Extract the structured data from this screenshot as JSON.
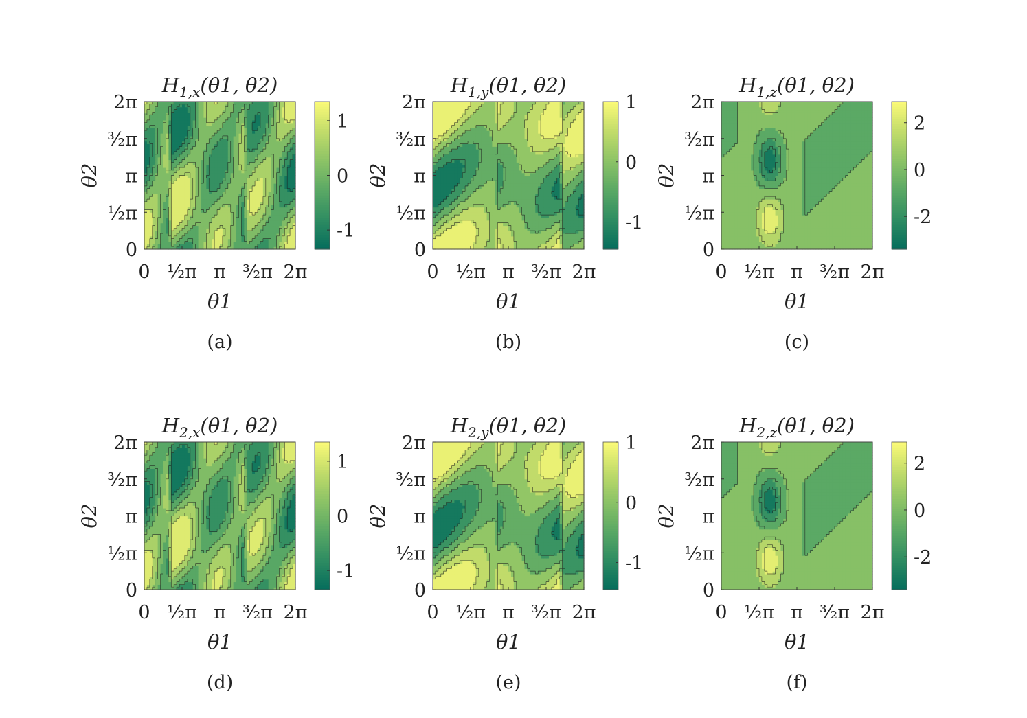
{
  "figure": {
    "rows": 2,
    "columns": 3,
    "colormap": [
      "#046c5c",
      "#2e8c62",
      "#5aa865",
      "#8cc366",
      "#c2dc6a",
      "#fbfa78"
    ],
    "contour_line_color": "#1e1e1e"
  },
  "chart_data": [
    {
      "type": "heatmap",
      "caption": "(a)",
      "title": "H1,x(θ1, θ2)",
      "title_main": "H",
      "title_sub": "1,x",
      "title_args": "(θ1, θ2)",
      "xlabel": "θ1",
      "ylabel": "θ2",
      "xlim": [
        0,
        6.2832
      ],
      "ylim": [
        0,
        6.2832
      ],
      "xticks": [
        0,
        1.5708,
        3.1416,
        4.7124,
        6.2832
      ],
      "xtick_labels": [
        "0",
        "½π",
        "π",
        "³⁄₂π",
        "2π"
      ],
      "yticks": [
        0,
        1.5708,
        3.1416,
        4.7124,
        6.2832
      ],
      "ytick_labels": [
        "0",
        "½π",
        "π",
        "³⁄₂π",
        "2π"
      ],
      "function": "hx",
      "colorbar": {
        "min": -1.35,
        "max": 1.35,
        "ticks": [
          1,
          0,
          -1
        ],
        "tick_labels": [
          "1",
          "0",
          "-1"
        ]
      },
      "contour_levels": [
        -0.96,
        -0.5,
        -0.08,
        0.35,
        0.8
      ]
    },
    {
      "type": "heatmap",
      "caption": "(b)",
      "title": "H1,y(θ1, θ2)",
      "title_main": "H",
      "title_sub": "1,y",
      "title_args": "(θ1, θ2)",
      "xlabel": "θ1",
      "ylabel": "θ2",
      "xlim": [
        0,
        6.2832
      ],
      "ylim": [
        0,
        6.2832
      ],
      "xticks": [
        0,
        1.5708,
        3.1416,
        4.7124,
        6.2832
      ],
      "xtick_labels": [
        "0",
        "½π",
        "π",
        "³⁄₂π",
        "2π"
      ],
      "yticks": [
        0,
        1.5708,
        3.1416,
        4.7124,
        6.2832
      ],
      "ytick_labels": [
        "0",
        "½π",
        "π",
        "³⁄₂π",
        "2π"
      ],
      "function": "hy",
      "colorbar": {
        "min": -1.45,
        "max": 1.0,
        "ticks": [
          1,
          0,
          -1
        ],
        "tick_labels": [
          "1",
          "0",
          "-1"
        ]
      },
      "contour_levels": [
        -1.05,
        -0.6,
        -0.15,
        0.3,
        0.7
      ]
    },
    {
      "type": "heatmap",
      "caption": "(c)",
      "title": "H1,z(θ1, θ2)",
      "title_main": "H",
      "title_sub": "1,z",
      "title_args": "(θ1, θ2)",
      "xlabel": "θ1",
      "ylabel": "θ2",
      "xlim": [
        0,
        6.2832
      ],
      "ylim": [
        0,
        6.2832
      ],
      "xticks": [
        0,
        1.5708,
        3.1416,
        4.7124,
        6.2832
      ],
      "xtick_labels": [
        "0",
        "½π",
        "π",
        "³⁄₂π",
        "2π"
      ],
      "yticks": [
        0,
        1.5708,
        3.1416,
        4.7124,
        6.2832
      ],
      "ytick_labels": [
        "0",
        "½π",
        "π",
        "³⁄₂π",
        "2π"
      ],
      "function": "hz",
      "colorbar": {
        "min": -3.4,
        "max": 2.9,
        "ticks": [
          2,
          0,
          -2
        ],
        "tick_labels": [
          "2",
          "0",
          "-2"
        ]
      },
      "contour_levels": [
        -2.4,
        -1.4,
        -0.3,
        0.8,
        1.9
      ]
    },
    {
      "type": "heatmap",
      "caption": "(d)",
      "title": "H2,x(θ1, θ2)",
      "title_main": "H",
      "title_sub": "2,x",
      "title_args": "(θ1, θ2)",
      "xlabel": "θ1",
      "ylabel": "θ2",
      "xlim": [
        0,
        6.2832
      ],
      "ylim": [
        0,
        6.2832
      ],
      "xticks": [
        0,
        1.5708,
        3.1416,
        4.7124,
        6.2832
      ],
      "xtick_labels": [
        "0",
        "½π",
        "π",
        "³⁄₂π",
        "2π"
      ],
      "yticks": [
        0,
        1.5708,
        3.1416,
        4.7124,
        6.2832
      ],
      "ytick_labels": [
        "0",
        "½π",
        "π",
        "³⁄₂π",
        "2π"
      ],
      "function": "hx",
      "colorbar": {
        "min": -1.35,
        "max": 1.35,
        "ticks": [
          1,
          0,
          -1
        ],
        "tick_labels": [
          "1",
          "0",
          "-1"
        ]
      },
      "contour_levels": [
        -0.96,
        -0.5,
        -0.08,
        0.35,
        0.8
      ]
    },
    {
      "type": "heatmap",
      "caption": "(e)",
      "title": "H2,y(θ1, θ2)",
      "title_main": "H",
      "title_sub": "2,y",
      "title_args": "(θ1, θ2)",
      "xlabel": "θ1",
      "ylabel": "θ2",
      "xlim": [
        0,
        6.2832
      ],
      "ylim": [
        0,
        6.2832
      ],
      "xticks": [
        0,
        1.5708,
        3.1416,
        4.7124,
        6.2832
      ],
      "xtick_labels": [
        "0",
        "½π",
        "π",
        "³⁄₂π",
        "2π"
      ],
      "yticks": [
        0,
        1.5708,
        3.1416,
        4.7124,
        6.2832
      ],
      "ytick_labels": [
        "0",
        "½π",
        "π",
        "³⁄₂π",
        "2π"
      ],
      "function": "hy",
      "colorbar": {
        "min": -1.45,
        "max": 1.0,
        "ticks": [
          1,
          0,
          -1
        ],
        "tick_labels": [
          "1",
          "0",
          "-1"
        ]
      },
      "contour_levels": [
        -1.05,
        -0.6,
        -0.15,
        0.3,
        0.7
      ]
    },
    {
      "type": "heatmap",
      "caption": "(f)",
      "title": "H2,z(θ1, θ2)",
      "title_main": "H",
      "title_sub": "2,z",
      "title_args": "(θ1, θ2)",
      "xlabel": "θ1",
      "ylabel": "θ2",
      "xlim": [
        0,
        6.2832
      ],
      "ylim": [
        0,
        6.2832
      ],
      "xticks": [
        0,
        1.5708,
        3.1416,
        4.7124,
        6.2832
      ],
      "xtick_labels": [
        "0",
        "½π",
        "π",
        "³⁄₂π",
        "2π"
      ],
      "yticks": [
        0,
        1.5708,
        3.1416,
        4.7124,
        6.2832
      ],
      "ytick_labels": [
        "0",
        "½π",
        "π",
        "³⁄₂π",
        "2π"
      ],
      "function": "hz",
      "colorbar": {
        "min": -3.4,
        "max": 2.9,
        "ticks": [
          2,
          0,
          -2
        ],
        "tick_labels": [
          "2",
          "0",
          "-2"
        ]
      },
      "contour_levels": [
        -2.4,
        -1.4,
        -0.3,
        0.8,
        1.9
      ]
    }
  ]
}
